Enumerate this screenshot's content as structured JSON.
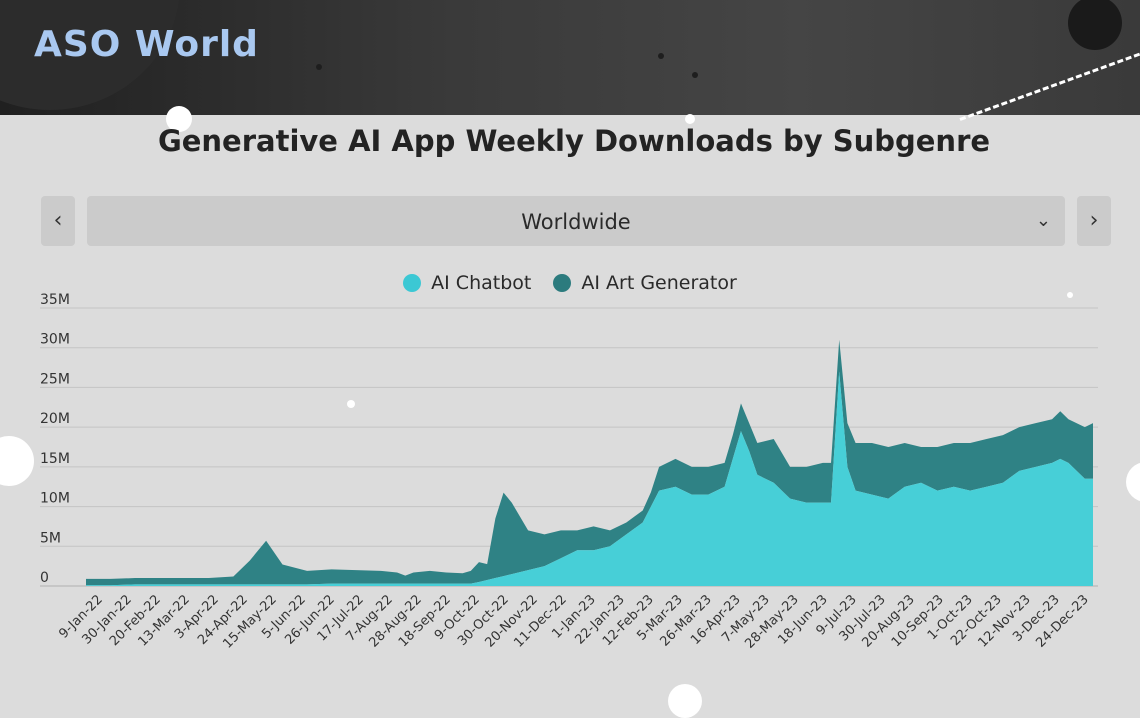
{
  "brand": {
    "name": "ASO World"
  },
  "title": "Generative AI App Weekly Downloads by Subgenre",
  "region_selector": {
    "selected": "Worldwide",
    "prev_icon": "chevron-left-icon",
    "next_icon": "chevron-right-icon",
    "dropdown_icon": "chevron-down-icon"
  },
  "colors": {
    "chatbot": "#47cfd7",
    "art": "#2f8285",
    "grid": "#bfbfbf",
    "axis_text": "#333333"
  },
  "chart_data": {
    "type": "area",
    "stacked": true,
    "title": "Generative AI App Weekly Downloads by Subgenre",
    "xlabel": "",
    "ylabel": "",
    "ylim": [
      0,
      35
    ],
    "yunit": "M",
    "yticks": [
      0,
      5,
      10,
      15,
      20,
      25,
      30,
      35
    ],
    "ytick_labels": [
      "0",
      "5M",
      "10M",
      "15M",
      "20M",
      "25M",
      "30M",
      "35M"
    ],
    "legend_position": "top-center",
    "x_tick_labels": [
      "9-Jan-22",
      "30-Jan-22",
      "20-Feb-22",
      "13-Mar-22",
      "3-Apr-22",
      "24-Apr-22",
      "15-May-22",
      "5-Jun-22",
      "26-Jun-22",
      "17-Jul-22",
      "7-Aug-22",
      "28-Aug-22",
      "18-Sep-22",
      "9-Oct-22",
      "30-Oct-22",
      "20-Nov-22",
      "11-Dec-22",
      "1-Jan-23",
      "22-Jan-23",
      "12-Feb-23",
      "5-Mar-23",
      "26-Mar-23",
      "16-Apr-23",
      "7-May-23",
      "28-May-23",
      "18-Jun-23",
      "9-Jul-23",
      "30-Jul-23",
      "20-Aug-23",
      "10-Sep-23",
      "1-Oct-23",
      "22-Oct-23",
      "12-Nov-23",
      "3-Dec-23",
      "24-Dec-23"
    ],
    "series": [
      {
        "name": "AI Chatbot",
        "points": [
          [
            0,
            0.1
          ],
          [
            3,
            0.1
          ],
          [
            6,
            0.2
          ],
          [
            9,
            0.2
          ],
          [
            12,
            0.2
          ],
          [
            15,
            0.2
          ],
          [
            18,
            0.2
          ],
          [
            21,
            0.2
          ],
          [
            24,
            0.2
          ],
          [
            27,
            0.2
          ],
          [
            30,
            0.3
          ],
          [
            33,
            0.3
          ],
          [
            36,
            0.3
          ],
          [
            39,
            0.3
          ],
          [
            42,
            0.3
          ],
          [
            45,
            0.3
          ],
          [
            47,
            0.3
          ],
          [
            48,
            0.5
          ],
          [
            50,
            1.0
          ],
          [
            52,
            1.5
          ],
          [
            54,
            2.0
          ],
          [
            56,
            2.5
          ],
          [
            58,
            3.5
          ],
          [
            60,
            4.5
          ],
          [
            62,
            4.5
          ],
          [
            64,
            5.0
          ],
          [
            66,
            6.5
          ],
          [
            68,
            8.0
          ],
          [
            69,
            10.0
          ],
          [
            70,
            12.0
          ],
          [
            72,
            12.5
          ],
          [
            74,
            11.5
          ],
          [
            76,
            11.5
          ],
          [
            78,
            12.5
          ],
          [
            79,
            16.0
          ],
          [
            80,
            19.5
          ],
          [
            81,
            17.0
          ],
          [
            82,
            14.0
          ],
          [
            84,
            13.0
          ],
          [
            86,
            11.0
          ],
          [
            88,
            10.5
          ],
          [
            90,
            10.5
          ],
          [
            91,
            10.5
          ],
          [
            92,
            27.0
          ],
          [
            93,
            15.0
          ],
          [
            94,
            12.0
          ],
          [
            96,
            11.5
          ],
          [
            98,
            11.0
          ],
          [
            100,
            12.5
          ],
          [
            102,
            13.0
          ],
          [
            104,
            12.0
          ],
          [
            106,
            12.5
          ],
          [
            108,
            12.0
          ],
          [
            110,
            12.5
          ],
          [
            112,
            13.0
          ],
          [
            114,
            14.5
          ],
          [
            116,
            15.0
          ],
          [
            118,
            15.5
          ],
          [
            119,
            16.0
          ],
          [
            120,
            15.5
          ],
          [
            122,
            13.5
          ],
          [
            123,
            13.5
          ]
        ]
      },
      {
        "name": "AI Art Generator",
        "points": [
          [
            0,
            0.8
          ],
          [
            3,
            0.8
          ],
          [
            6,
            0.8
          ],
          [
            9,
            0.8
          ],
          [
            12,
            0.8
          ],
          [
            15,
            0.8
          ],
          [
            18,
            1.0
          ],
          [
            20,
            3.0
          ],
          [
            22,
            5.5
          ],
          [
            24,
            2.5
          ],
          [
            27,
            1.7
          ],
          [
            30,
            1.8
          ],
          [
            33,
            1.7
          ],
          [
            36,
            1.6
          ],
          [
            38,
            1.4
          ],
          [
            39,
            1.0
          ],
          [
            40,
            1.4
          ],
          [
            42,
            1.6
          ],
          [
            44,
            1.4
          ],
          [
            46,
            1.3
          ],
          [
            47,
            1.6
          ],
          [
            48,
            2.5
          ],
          [
            49,
            2.0
          ],
          [
            50,
            7.5
          ],
          [
            51,
            10.5
          ],
          [
            52,
            9.0
          ],
          [
            54,
            5.0
          ],
          [
            56,
            4.0
          ],
          [
            58,
            3.5
          ],
          [
            60,
            2.5
          ],
          [
            62,
            3.0
          ],
          [
            64,
            2.0
          ],
          [
            66,
            1.5
          ],
          [
            68,
            1.5
          ],
          [
            69,
            1.8
          ],
          [
            70,
            3.0
          ],
          [
            72,
            3.5
          ],
          [
            74,
            3.5
          ],
          [
            76,
            3.5
          ],
          [
            78,
            3.0
          ],
          [
            79,
            3.0
          ],
          [
            80,
            3.5
          ],
          [
            81,
            3.5
          ],
          [
            82,
            4.0
          ],
          [
            84,
            5.5
          ],
          [
            86,
            4.0
          ],
          [
            88,
            4.5
          ],
          [
            90,
            5.0
          ],
          [
            91,
            5.0
          ],
          [
            92,
            4.0
          ],
          [
            93,
            5.5
          ],
          [
            94,
            6.0
          ],
          [
            96,
            6.5
          ],
          [
            98,
            6.5
          ],
          [
            100,
            5.5
          ],
          [
            102,
            4.5
          ],
          [
            104,
            5.5
          ],
          [
            106,
            5.5
          ],
          [
            108,
            6.0
          ],
          [
            110,
            6.0
          ],
          [
            112,
            6.0
          ],
          [
            114,
            5.5
          ],
          [
            116,
            5.5
          ],
          [
            118,
            5.5
          ],
          [
            119,
            6.0
          ],
          [
            120,
            5.5
          ],
          [
            122,
            6.5
          ],
          [
            123,
            7.0
          ]
        ]
      }
    ]
  }
}
